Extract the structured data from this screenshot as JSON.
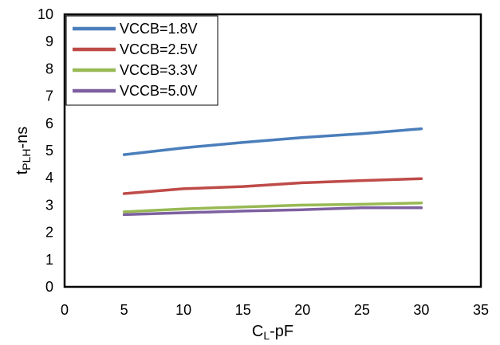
{
  "chart_data": {
    "type": "line",
    "xlabel": {
      "main": "C",
      "sub": "L",
      "suffix": "-pF"
    },
    "ylabel": {
      "main": "t",
      "sub": "PLH",
      "suffix": "-ns"
    },
    "xlim": [
      0,
      35
    ],
    "ylim": [
      0,
      10
    ],
    "xticks": [
      0,
      5,
      10,
      15,
      20,
      25,
      30,
      35
    ],
    "yticks": [
      0,
      1,
      2,
      3,
      4,
      5,
      6,
      7,
      8,
      9,
      10
    ],
    "grid": false,
    "legend_position": "top-left",
    "x": [
      5,
      10,
      15,
      20,
      25,
      30
    ],
    "series": [
      {
        "name": "VCCB=1.8V",
        "color": "#4a7ebb",
        "values": [
          4.85,
          5.1,
          5.3,
          5.48,
          5.62,
          5.8
        ]
      },
      {
        "name": "VCCB=2.5V",
        "color": "#be4b48",
        "values": [
          3.42,
          3.6,
          3.68,
          3.82,
          3.9,
          3.97
        ]
      },
      {
        "name": "VCCB=3.3V",
        "color": "#98b954",
        "values": [
          2.75,
          2.86,
          2.93,
          3.0,
          3.03,
          3.08
        ]
      },
      {
        "name": "VCCB=5.0V",
        "color": "#7d60a0",
        "values": [
          2.65,
          2.72,
          2.78,
          2.83,
          2.9,
          2.9
        ]
      }
    ]
  }
}
